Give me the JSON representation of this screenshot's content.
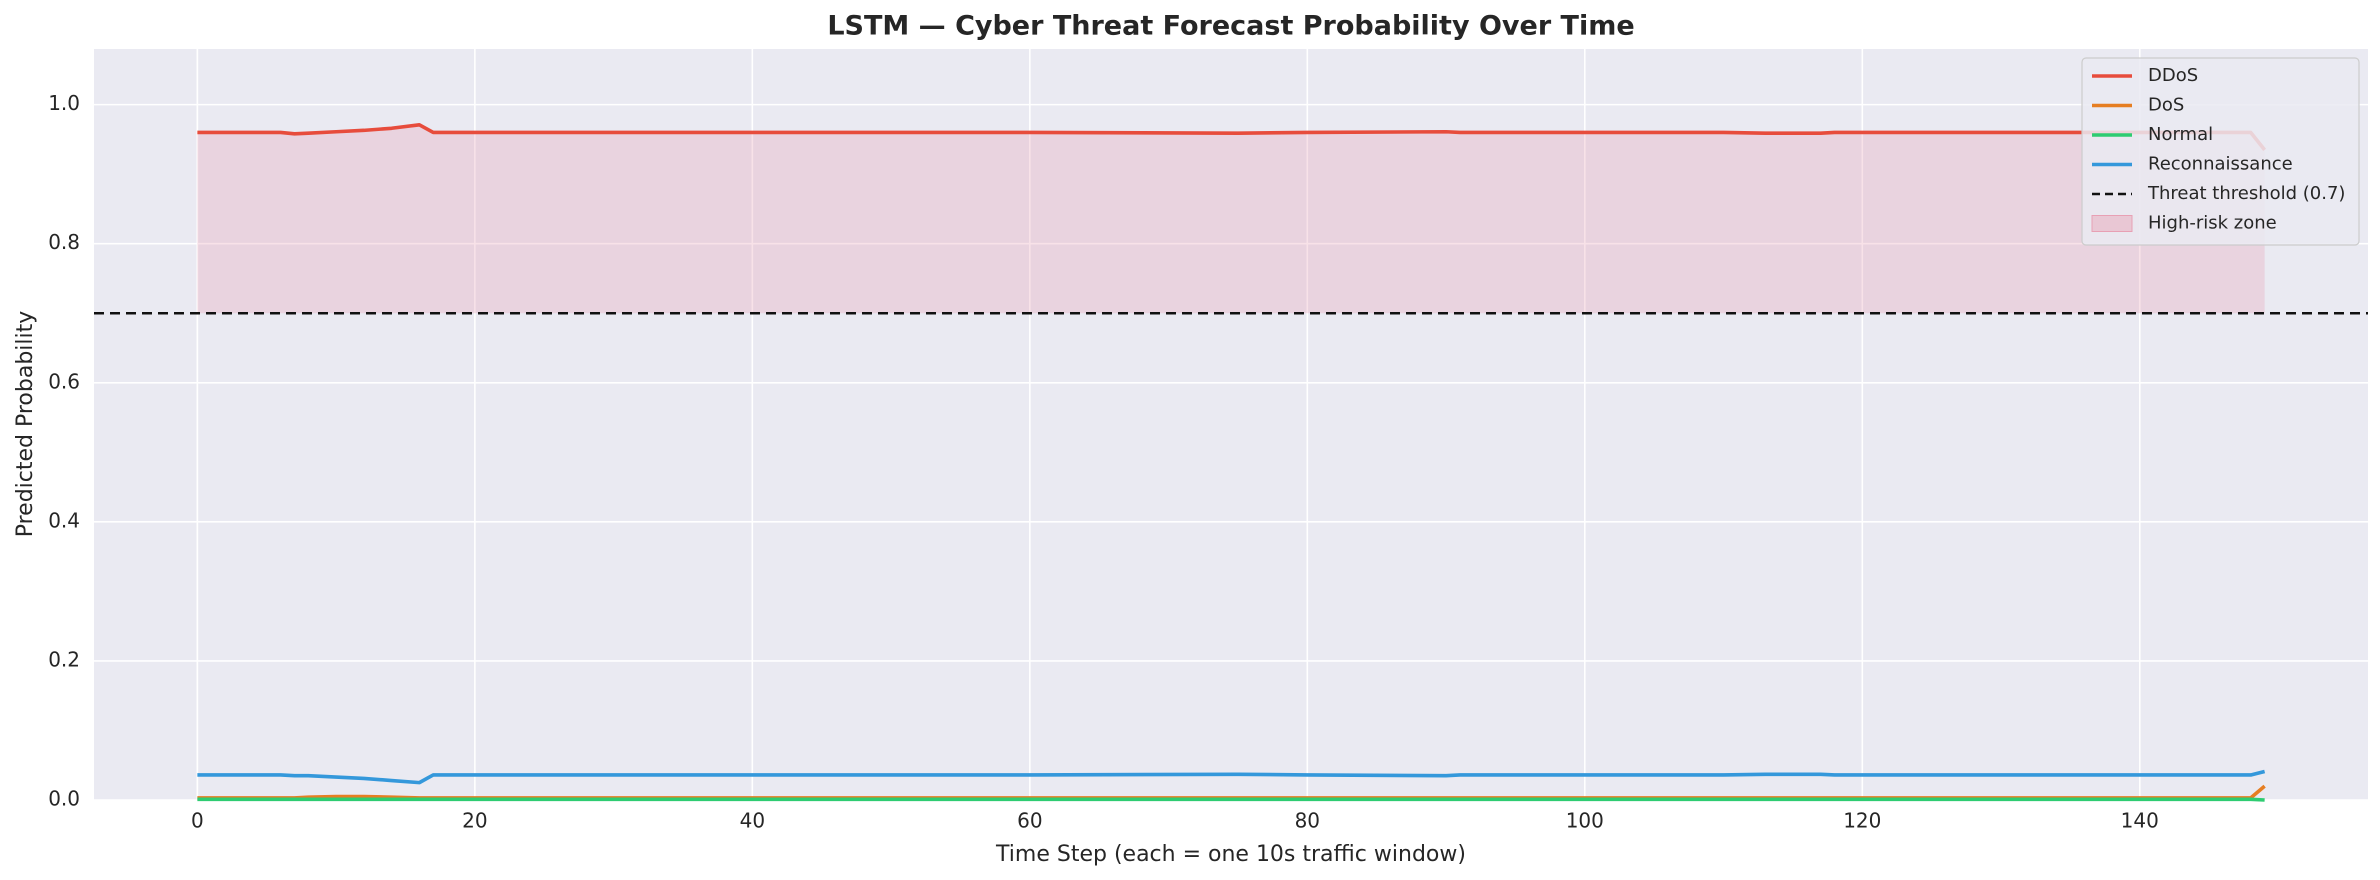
{
  "chart_data": {
    "type": "line",
    "title": "LSTM — Cyber Threat Forecast Probability Over Time",
    "x_label": "Time Step  (each = one 10s traffic window)",
    "y_label": "Predicted Probability",
    "x": [
      0,
      6,
      7,
      8,
      10,
      12,
      14,
      16,
      17,
      30,
      60,
      75,
      80,
      90,
      91,
      100,
      110,
      113,
      117,
      118,
      130,
      140,
      147,
      148,
      149
    ],
    "series": [
      {
        "name": "DDoS",
        "color": "#e74c3c",
        "values": [
          0.96,
          0.96,
          0.958,
          0.959,
          0.961,
          0.963,
          0.966,
          0.971,
          0.96,
          0.96,
          0.96,
          0.959,
          0.96,
          0.961,
          0.96,
          0.96,
          0.96,
          0.959,
          0.959,
          0.96,
          0.96,
          0.96,
          0.96,
          0.96,
          0.935
        ]
      },
      {
        "name": "DoS",
        "color": "#e67e22",
        "values": [
          0.003,
          0.003,
          0.003,
          0.004,
          0.005,
          0.005,
          0.004,
          0.003,
          0.003,
          0.003,
          0.003,
          0.003,
          0.003,
          0.003,
          0.003,
          0.003,
          0.003,
          0.003,
          0.003,
          0.003,
          0.003,
          0.003,
          0.003,
          0.003,
          0.02
        ]
      },
      {
        "name": "Normal",
        "color": "#2ecc71",
        "values": [
          0.001,
          0.001,
          0.001,
          0.001,
          0.001,
          0.001,
          0.001,
          0.001,
          0.001,
          0.001,
          0.001,
          0.001,
          0.001,
          0.001,
          0.001,
          0.001,
          0.001,
          0.001,
          0.001,
          0.001,
          0.001,
          0.001,
          0.001,
          0.001,
          0
        ]
      },
      {
        "name": "Reconnaissance",
        "color": "#3498db",
        "values": [
          0.036,
          0.036,
          0.035,
          0.035,
          0.033,
          0.031,
          0.028,
          0.025,
          0.036,
          0.036,
          0.036,
          0.037,
          0.036,
          0.035,
          0.036,
          0.036,
          0.036,
          0.037,
          0.037,
          0.036,
          0.036,
          0.036,
          0.036,
          0.036,
          0.041
        ]
      }
    ],
    "threshold": {
      "value": 0.7,
      "label": "Threat threshold (0.7)",
      "color": "#111111"
    },
    "zone": {
      "label": "High-risk zone",
      "color": "#e8a0b4"
    },
    "xlim": [
      -7.45,
      156.45
    ],
    "ylim": [
      0,
      1.08
    ],
    "xticks": [
      0,
      20,
      40,
      60,
      80,
      100,
      120,
      140
    ],
    "yticks": [
      {
        "value": 0,
        "label": "0.0"
      },
      0.2,
      0.4,
      0.6,
      0.8,
      {
        "value": 1,
        "label": "1.0"
      }
    ],
    "grid": true,
    "legend": "upper right"
  }
}
